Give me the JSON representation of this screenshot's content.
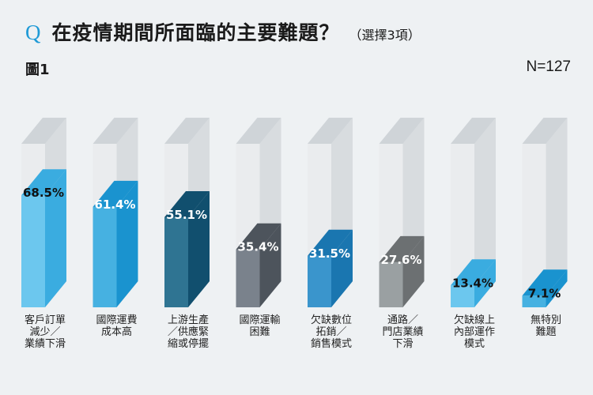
{
  "header": {
    "q_mark": "Q",
    "title": "在疫情期間所面臨的主要難題？",
    "subtitle": "（選擇3項）",
    "figure_label": "圖1",
    "sample_size": "N=127"
  },
  "chart_data": {
    "type": "bar",
    "title": "在疫情期間所面臨的主要難題？",
    "subtitle": "（選擇3項）",
    "categories": [
      "客戶訂單\n減少／\n業績下滑",
      "國際運費\n成本高",
      "上游生產\n／供應緊\n縮或停擺",
      "國際運輸\n困難",
      "欠缺數位\n拓銷／\n銷售模式",
      "通路／\n門店業績\n下滑",
      "欠缺線上\n內部運作\n模式",
      "無特別\n難題"
    ],
    "values": [
      68.5,
      61.4,
      55.1,
      35.4,
      31.5,
      27.6,
      13.4,
      7.1
    ],
    "value_labels": [
      "68.5%",
      "61.4%",
      "55.1%",
      "35.4%",
      "31.5%",
      "27.6%",
      "13.4%",
      "7.1%"
    ],
    "ylim": [
      0,
      100
    ],
    "colors": {
      "fill_front": [
        "#6cc7ee",
        "#46b1e1",
        "#2f7492",
        "#7a828c",
        "#3a95cc",
        "#9aa0a2",
        "#6cc7ee",
        "#46b1e1"
      ],
      "fill_side": [
        "#3aace0",
        "#1a93cf",
        "#114f6e",
        "#4d545c",
        "#1a76b0",
        "#6c7072",
        "#3aace0",
        "#1a93cf"
      ],
      "fill_top": [
        "#3aace0",
        "#1a93cf",
        "#114f6e",
        "#4d545c",
        "#1a76b0",
        "#6c7072",
        "#3aace0",
        "#1a93cf"
      ],
      "label_color": [
        "#111111",
        "#ffffff",
        "#ffffff",
        "#ffffff",
        "#ffffff",
        "#ffffff",
        "#111111",
        "#111111"
      ],
      "empty_front": "#eaecee",
      "empty_side": "#d8dcdf",
      "empty_top": "#cfd4d8",
      "accent": "#1f9ad6"
    },
    "grid": false,
    "legend": "none"
  }
}
